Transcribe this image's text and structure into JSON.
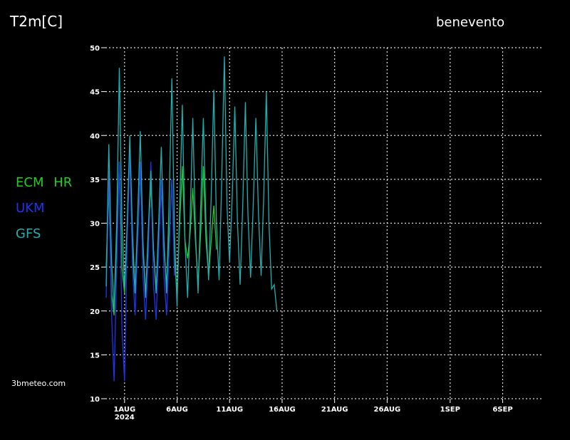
{
  "chart_data": {
    "type": "line",
    "title": "T2m[C]",
    "location": "benevento",
    "source": "3bmeteo.com",
    "x_year_label": "2024",
    "xlim": [
      -0.82,
      40.9
    ],
    "ylim": [
      10,
      50
    ],
    "xticks": [
      {
        "value": 1,
        "label": "1AUG"
      },
      {
        "value": 6,
        "label": "6AUG"
      },
      {
        "value": 11,
        "label": "11AUG"
      },
      {
        "value": 16,
        "label": "16AUG"
      },
      {
        "value": 21,
        "label": "21AUG"
      },
      {
        "value": 26,
        "label": "26AUG"
      },
      {
        "value": 32,
        "label": "1SEP"
      },
      {
        "value": 37,
        "label": "6SEP"
      }
    ],
    "yticks": [
      10,
      15,
      20,
      25,
      30,
      35,
      40,
      45,
      50
    ],
    "grid": true,
    "x": [
      -0.75,
      -0.5,
      -0.25,
      0,
      0.25,
      0.5,
      0.75,
      1,
      1.25,
      1.5,
      1.75,
      2,
      2.25,
      2.5,
      2.75,
      3,
      3.25,
      3.5,
      3.75,
      4,
      4.25,
      4.5,
      4.75,
      5,
      5.25,
      5.5,
      5.75,
      6,
      6.25,
      6.5,
      6.75,
      7,
      7.25,
      7.5,
      7.75,
      8,
      8.25,
      8.5,
      8.75,
      9,
      9.25,
      9.5,
      9.75,
      10,
      10.25,
      10.5,
      10.75,
      11,
      11.25,
      11.5,
      11.75,
      12,
      12.25,
      12.5,
      12.75,
      13,
      13.25,
      13.5,
      13.75,
      14,
      14.25,
      14.5,
      14.75,
      15,
      15.25,
      15.5
    ],
    "series": [
      {
        "name": "ECM HR",
        "color": "#22cc22",
        "values": [
          25,
          34,
          22,
          19.5,
          28,
          37,
          25,
          22,
          29,
          38,
          27,
          22,
          28,
          36,
          27,
          22,
          28,
          34.5,
          27,
          22.5,
          28,
          34,
          27,
          23,
          29,
          35,
          26,
          22,
          30,
          36.5,
          28,
          26,
          29,
          34,
          28,
          23,
          29,
          36.5,
          28,
          24,
          28,
          32,
          27,
          null,
          null,
          null,
          null,
          null,
          null,
          null,
          null,
          null,
          null,
          null,
          null,
          null,
          null,
          null,
          null,
          null,
          null,
          null,
          null,
          null,
          null,
          null
        ]
      },
      {
        "name": "UKM",
        "color": "#2233ee",
        "values": [
          21.5,
          36,
          20,
          12,
          25,
          37,
          18,
          12,
          28,
          38,
          25,
          19.5,
          28,
          37,
          24,
          19,
          26,
          37,
          23,
          19,
          27,
          35,
          24,
          19.5,
          27,
          35,
          24,
          null,
          null,
          null,
          null,
          null,
          null,
          null,
          null,
          null,
          null,
          null,
          null,
          null,
          null,
          null,
          null,
          null,
          null,
          null,
          null,
          null,
          null,
          null,
          null,
          null,
          null,
          null,
          null,
          null,
          null,
          null,
          null,
          null,
          null,
          null,
          null,
          null,
          null,
          null
        ]
      },
      {
        "name": "GFS",
        "color": "#20b0b0",
        "values": [
          22.8,
          39,
          26,
          20,
          30,
          47.7,
          30,
          22.5,
          30,
          40,
          29,
          22,
          31,
          40.5,
          28,
          21.5,
          29,
          36,
          27,
          22,
          30,
          38.7,
          28,
          22,
          33,
          46.5,
          29,
          20.5,
          32,
          43.5,
          28,
          21.5,
          31,
          42,
          29,
          22,
          32,
          42,
          30,
          23.5,
          33,
          45.2,
          30,
          23.5,
          35,
          49,
          32,
          25.5,
          33,
          43.3,
          30,
          23,
          32,
          43.8,
          31,
          23.8,
          32,
          42,
          31,
          24,
          33,
          45,
          30,
          22.5,
          23,
          20
        ]
      }
    ]
  }
}
